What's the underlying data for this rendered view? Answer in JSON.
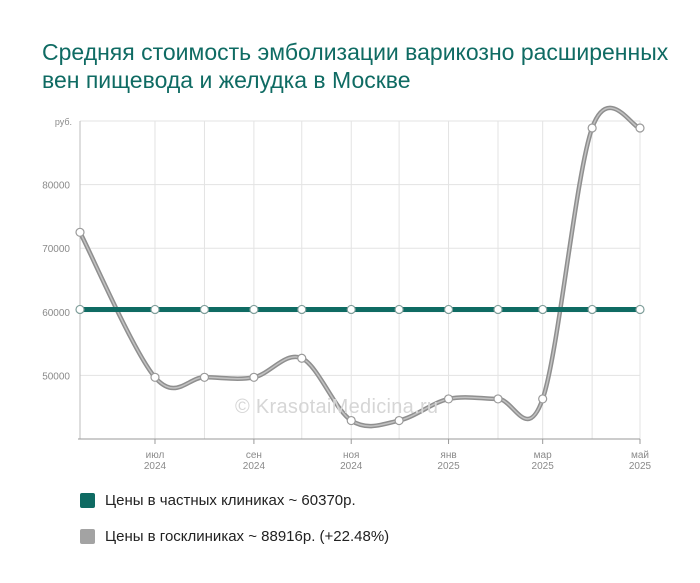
{
  "title": "Средняя стоимость эмболизации варикозно расширенных вен пищевода и желудка в Москве",
  "watermark": "© KrasotaiMedicina.ru",
  "chart_data": {
    "type": "line",
    "ylabel": "руб.",
    "yticks": [
      50000,
      60000,
      70000,
      80000
    ],
    "ylim": [
      40000,
      90000
    ],
    "xlim": [
      "2024-05-15",
      "2025-05-01"
    ],
    "x_tick_labels": [
      {
        "date": "2024-07-01",
        "month": "июл",
        "year": "2024"
      },
      {
        "date": "2024-09-01",
        "month": "сен",
        "year": "2024"
      },
      {
        "date": "2024-11-01",
        "month": "ноя",
        "year": "2024"
      },
      {
        "date": "2025-01-01",
        "month": "янв",
        "year": "2025"
      },
      {
        "date": "2025-03-01",
        "month": "мар",
        "year": "2025"
      },
      {
        "date": "2025-05-01",
        "month": "май",
        "year": "2025"
      }
    ],
    "x": [
      "2024-05-15",
      "2024-07-01",
      "2024-08-01",
      "2024-09-01",
      "2024-10-01",
      "2024-11-01",
      "2024-12-01",
      "2025-01-01",
      "2025-02-01",
      "2025-03-01",
      "2025-04-01",
      "2025-05-01"
    ],
    "series": [
      {
        "name": "Цены в частных клиниках ~ 60370р.",
        "color": "#0f6b63",
        "values": [
          60370,
          60370,
          60370,
          60370,
          60370,
          60370,
          60370,
          60370,
          60370,
          60370,
          60370,
          60370
        ]
      },
      {
        "name": "Цены в госклиниках ~ 88916р. (+22.48%)",
        "color": "#a3a3a3",
        "values": [
          72500,
          49700,
          49700,
          49700,
          52700,
          42900,
          42900,
          46300,
          46300,
          46300,
          88900,
          88900
        ]
      }
    ],
    "grid": true,
    "legend": "bottom"
  }
}
